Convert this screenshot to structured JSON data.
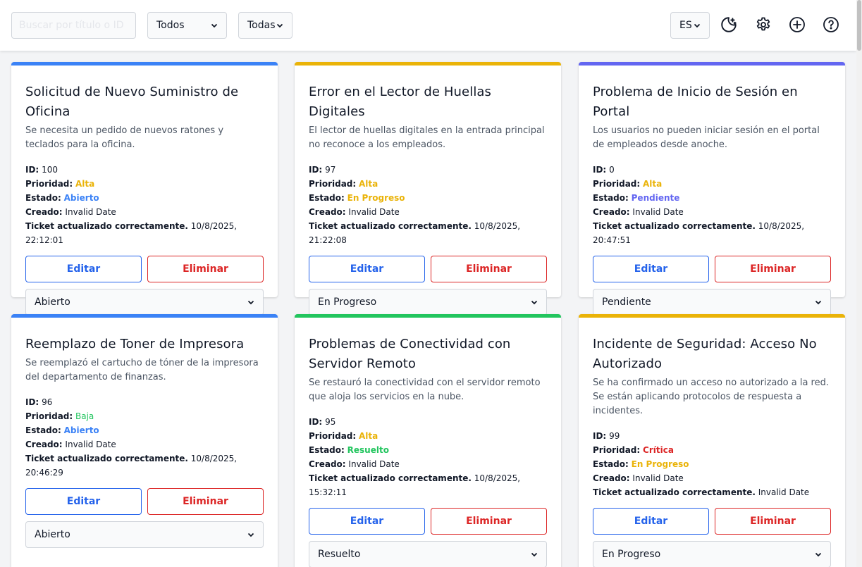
{
  "header": {
    "search_placeholder": "Buscar por título o ID",
    "filter_status": "Todos",
    "filter_priority": "Todas",
    "language": "ES"
  },
  "labels": {
    "id": "ID:",
    "priority": "Prioridad:",
    "status": "Estado:",
    "created": "Creado:",
    "updated": "Ticket actualizado correctamente.",
    "edit": "Editar",
    "delete": "Eliminar"
  },
  "colors": {
    "blue": "#3b82f6",
    "amber": "#eab308",
    "indigo": "#6366f1",
    "green": "#22c55e",
    "red": "#dc2626"
  },
  "tickets": [
    {
      "title": "Solicitud de Nuevo Suministro de Oficina",
      "description": "Se necesita un pedido de nuevos ratones y teclados para la oficina.",
      "id": "100",
      "priority": "Alta",
      "status": "Abierto",
      "created": "Invalid Date",
      "updated": "10/8/2025, 22:12:01",
      "select": "Abierto"
    },
    {
      "title": "Error en el Lector de Huellas Digitales",
      "description": "El lector de huellas digitales en la entrada principal no reconoce a los empleados.",
      "id": "97",
      "priority": "Alta",
      "status": "En Progreso",
      "created": "Invalid Date",
      "updated": "10/8/2025, 21:22:08",
      "select": "En Progreso"
    },
    {
      "title": "Problema de Inicio de Sesión en Portal",
      "description": "Los usuarios no pueden iniciar sesión en el portal de empleados desde anoche.",
      "id": "0",
      "priority": "Alta",
      "status": "Pendiente",
      "created": "Invalid Date",
      "updated": "10/8/2025, 20:47:51",
      "select": "Pendiente"
    },
    {
      "title": "Reemplazo de Toner de Impresora",
      "description": "Se reemplazó el cartucho de tóner de la impresora del departamento de finanzas.",
      "id": "96",
      "priority": "Baja",
      "status": "Abierto",
      "created": "Invalid Date",
      "updated": "10/8/2025, 20:46:29",
      "select": "Abierto"
    },
    {
      "title": "Problemas de Conectividad con Servidor Remoto",
      "description": "Se restauró la conectividad con el servidor remoto que aloja los servicios en la nube.",
      "id": "95",
      "priority": "Alta",
      "status": "Resuelto",
      "created": "Invalid Date",
      "updated": "10/8/2025, 15:32:11",
      "select": "Resuelto"
    },
    {
      "title": "Incidente de Seguridad: Acceso No Autorizado",
      "description": "Se ha confirmado un acceso no autorizado a la red. Se están aplicando protocolos de respuesta a incidentes.",
      "id": "99",
      "priority": "Crítica",
      "status": "En Progreso",
      "created": "Invalid Date",
      "updated": "Invalid Date",
      "select": "En Progreso"
    }
  ]
}
